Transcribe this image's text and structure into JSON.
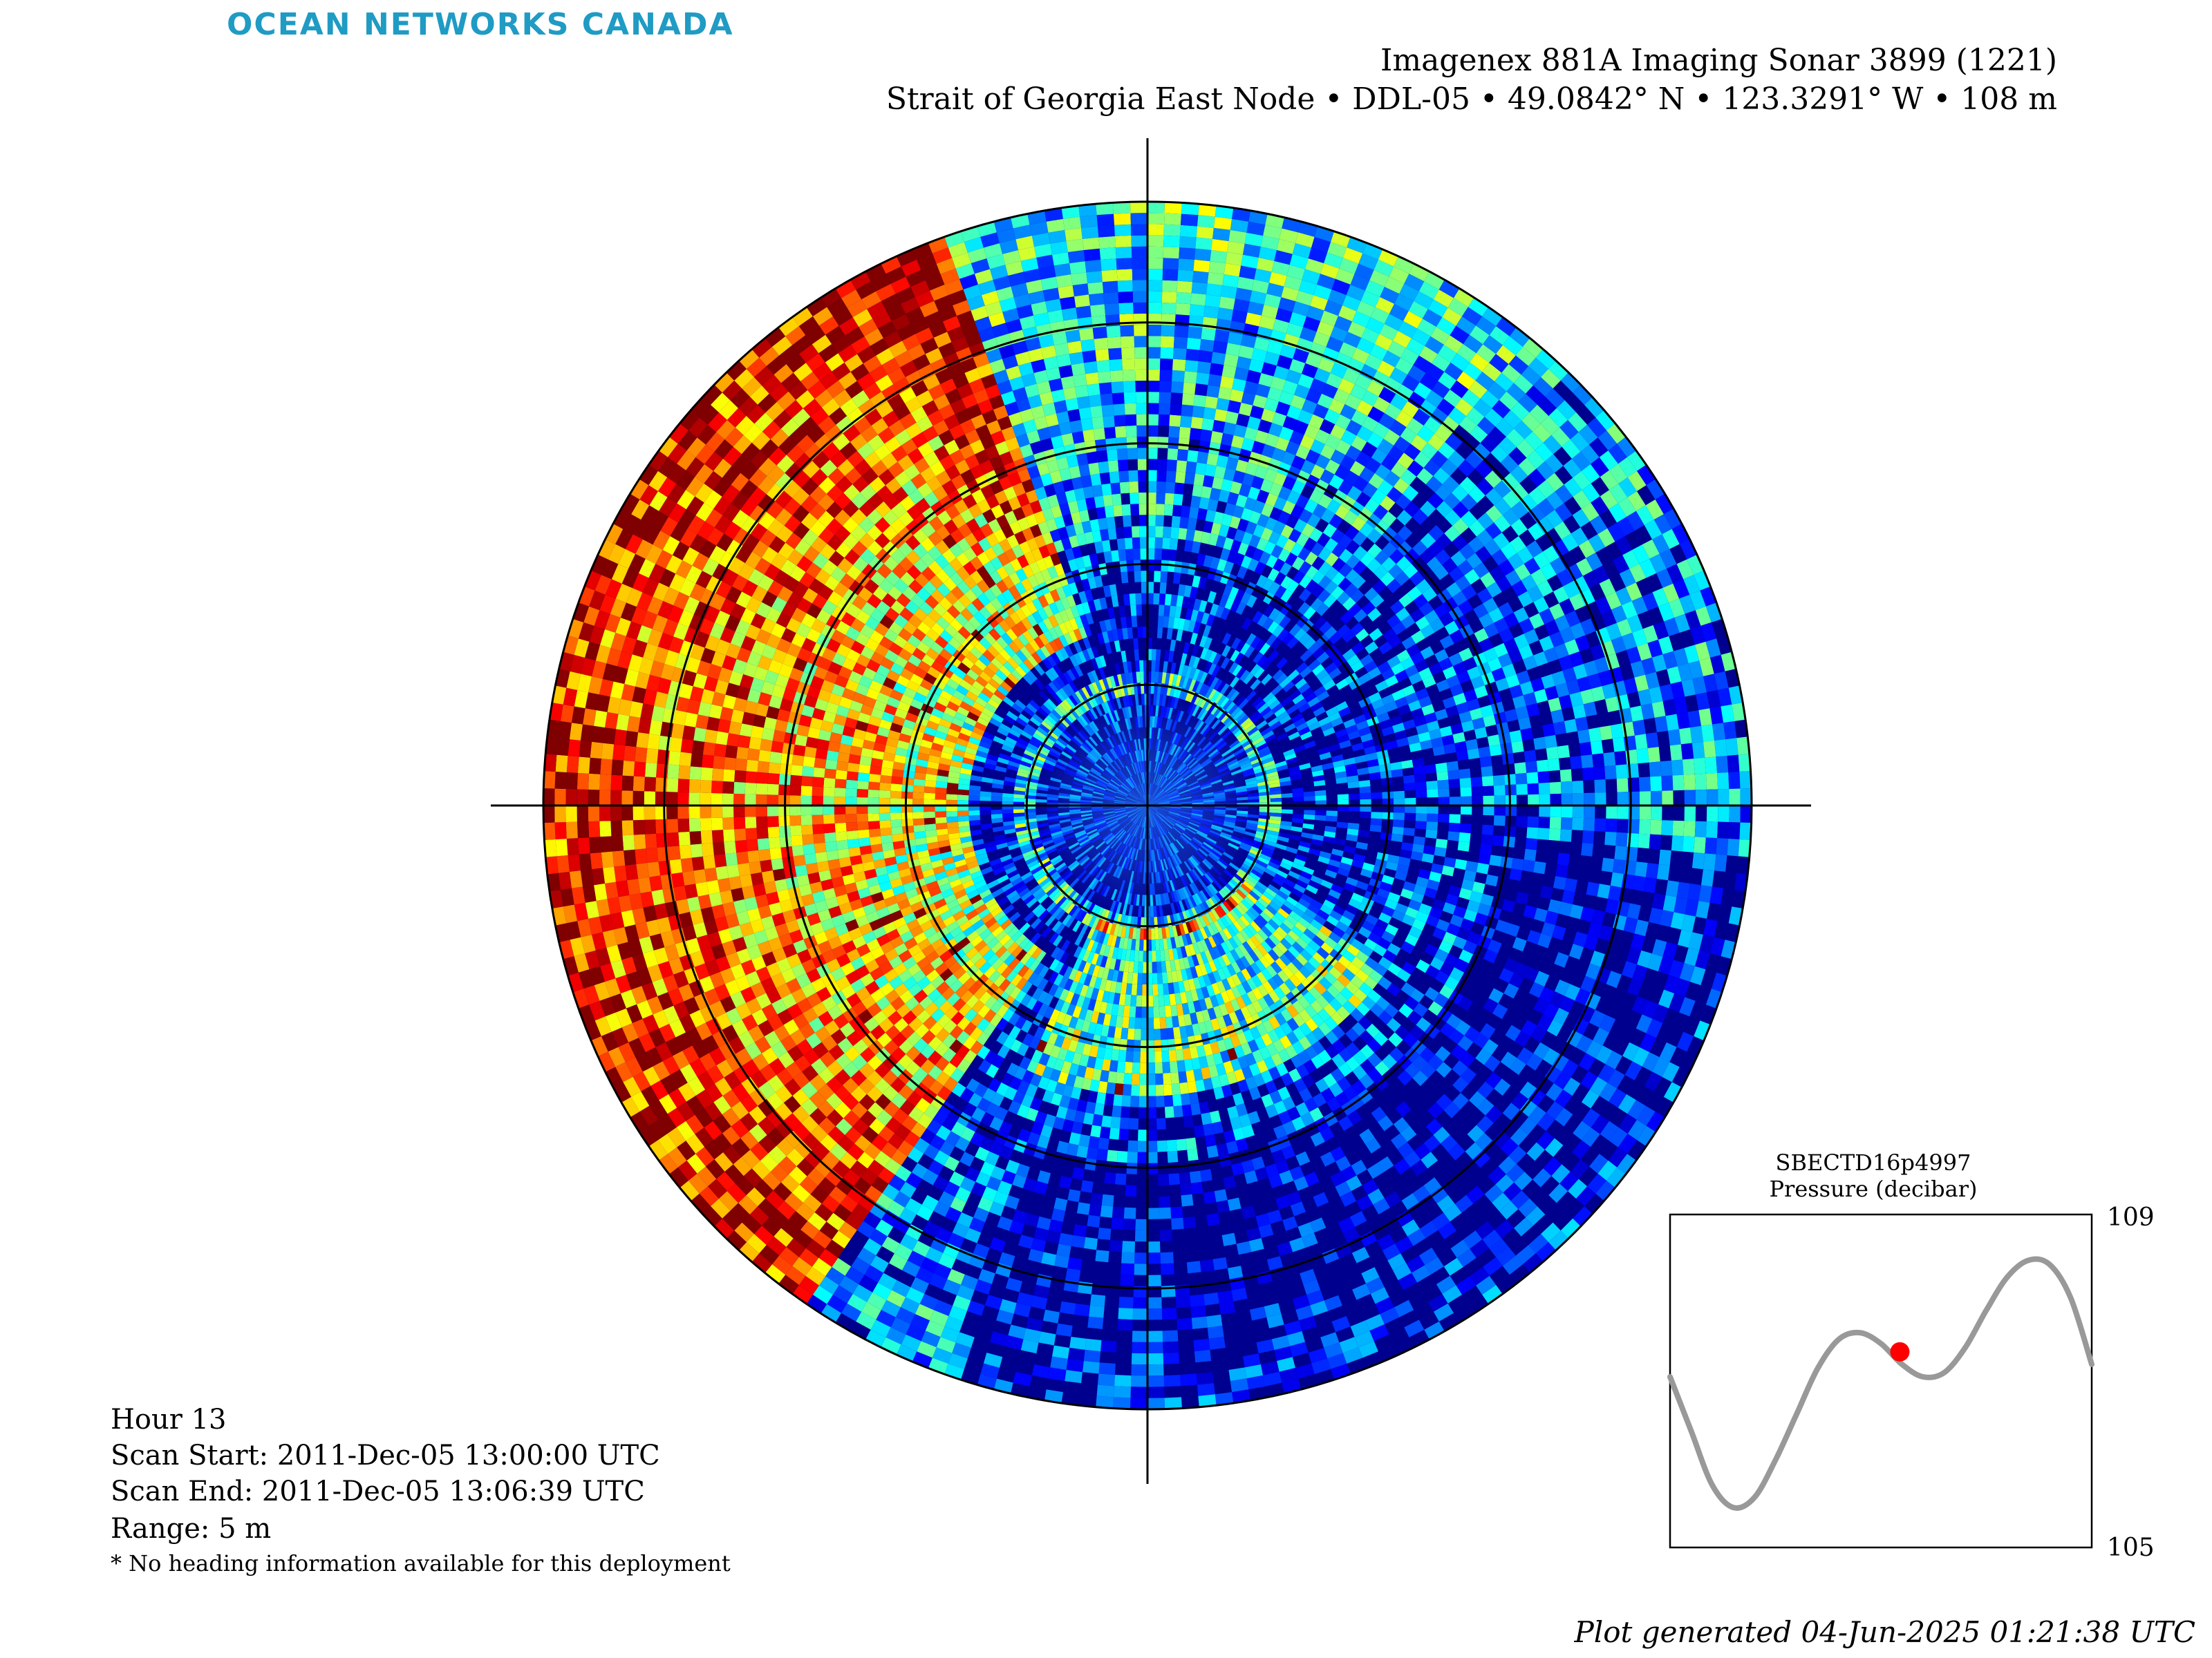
{
  "brand": "OCEAN NETWORKS CANADA",
  "title": {
    "instrument": "Imagenex 881A Imaging Sonar 3899 (1221)",
    "location": "Strait of Georgia East Node • DDL-05 • 49.0842° N • 123.3291° W • 108 m"
  },
  "scan_info": {
    "hour": "Hour 13",
    "scan_start": "Scan Start: 2011-Dec-05 13:00:00 UTC",
    "scan_end": "Scan End: 2011-Dec-05 13:06:39 UTC",
    "range": "Range: 5 m",
    "note": "* No heading information available for this deployment"
  },
  "sonar": {
    "colormap": "jet",
    "range_m": 5,
    "range_rings_m": [
      1,
      2,
      3,
      4
    ],
    "background_color": "#00008f"
  },
  "inset": {
    "sensor": "SBECTD16p4997",
    "parameter": "Pressure (decibar)",
    "y_max_label": "109",
    "y_min_label": "105",
    "line_color": "#999999",
    "marker_color": "#ff0000"
  },
  "chart_data": {
    "type": "line",
    "title": "SBECTD16p4997",
    "ylabel": "Pressure (decibar)",
    "ylim": [
      105,
      109
    ],
    "xlabel": "",
    "x": [
      0,
      0.05,
      0.1,
      0.15,
      0.2,
      0.25,
      0.3,
      0.35,
      0.4,
      0.45,
      0.5,
      0.55,
      0.6,
      0.65,
      0.7,
      0.75,
      0.8,
      0.85,
      0.9,
      0.95,
      1.0
    ],
    "series": [
      {
        "values": [
          107.05,
          106.4,
          105.75,
          105.48,
          105.6,
          106.05,
          106.6,
          107.15,
          107.5,
          107.58,
          107.45,
          107.2,
          107.05,
          107.1,
          107.4,
          107.85,
          108.25,
          108.45,
          108.4,
          108.0,
          107.2
        ]
      }
    ],
    "marker": {
      "x": 0.545,
      "y": 107.35
    }
  },
  "footer": "Plot generated 04-Jun-2025 01:21:38 UTC"
}
